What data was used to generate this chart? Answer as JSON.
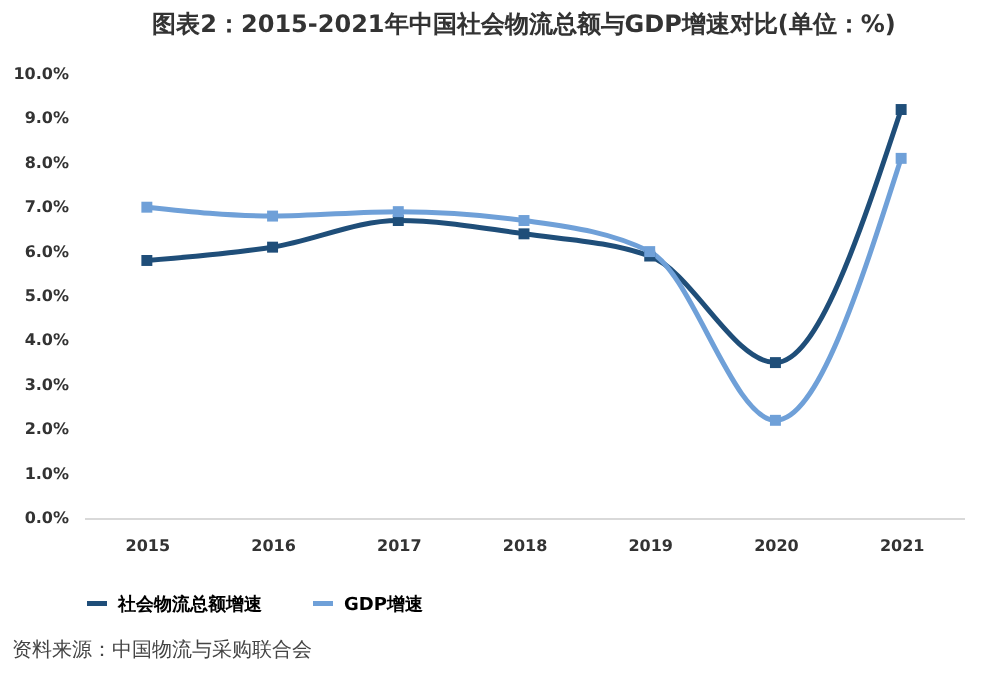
{
  "chart_data": {
    "type": "line",
    "title": "图表2：2015-2021年中国社会物流总额与GDP增速对比(单位：%)",
    "categories": [
      "2015",
      "2016",
      "2017",
      "2018",
      "2019",
      "2020",
      "2021"
    ],
    "series": [
      {
        "name": "社会物流总额增速",
        "color": "#1f4e79",
        "values": [
          5.8,
          6.1,
          6.7,
          6.4,
          5.9,
          3.5,
          9.2
        ]
      },
      {
        "name": "GDP增速",
        "color": "#6fa0d8",
        "values": [
          7.0,
          6.8,
          6.9,
          6.7,
          6.0,
          2.2,
          8.1
        ]
      }
    ],
    "ylim": [
      0,
      10
    ],
    "yticks": [
      {
        "value": 0,
        "label": "0.0%"
      },
      {
        "value": 1,
        "label": "1.0%"
      },
      {
        "value": 2,
        "label": "2.0%"
      },
      {
        "value": 3,
        "label": "3.0%"
      },
      {
        "value": 4,
        "label": "4.0%"
      },
      {
        "value": 5,
        "label": "5.0%"
      },
      {
        "value": 6,
        "label": "6.0%"
      },
      {
        "value": 7,
        "label": "7.0%"
      },
      {
        "value": 8,
        "label": "8.0%"
      },
      {
        "value": 9,
        "label": "9.0%"
      },
      {
        "value": 10,
        "label": "10.0%"
      }
    ],
    "grid": false,
    "legend": "bottom",
    "marker": "square",
    "line_style": "solid",
    "annotations": [
      "资料来源：中国物流与采购联合会"
    ]
  }
}
